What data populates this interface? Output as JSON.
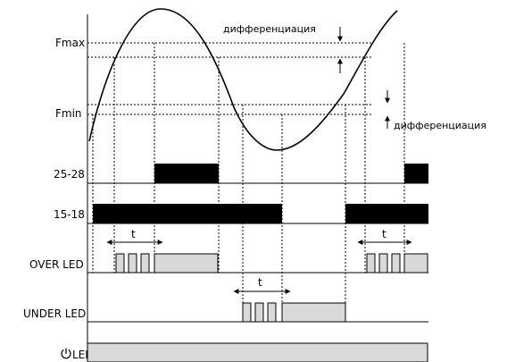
{
  "levels": {
    "fmax": "Fmax",
    "fmin": "Fmin"
  },
  "annotations": {
    "differentiation_top": "дифференциация",
    "differentiation_bottom": "дифференциация",
    "delay_1": "t",
    "delay_2": "t",
    "delay_3": "t"
  },
  "rows": {
    "relay_25_28": "25-28",
    "relay_15_18": "15-18",
    "over_led": "OVER LED",
    "under_led": "UNDER LED",
    "power_led": "LED"
  },
  "icons": {
    "power": "power-icon"
  }
}
